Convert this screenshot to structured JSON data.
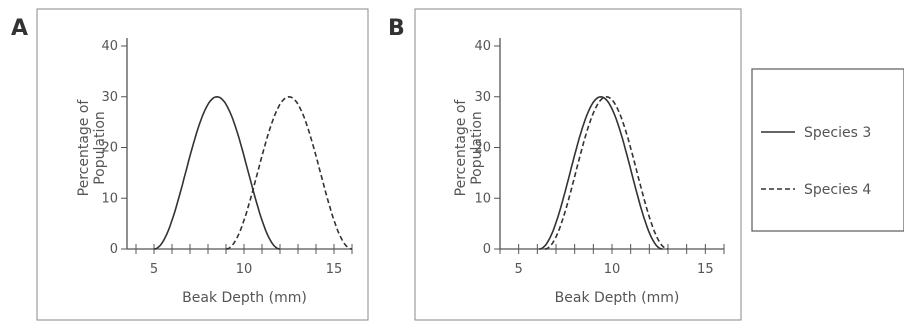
{
  "chart_data": [
    {
      "panel": "A",
      "type": "line",
      "xlabel": "Beak Depth (mm)",
      "ylabel": [
        "Percentage of",
        "Population"
      ],
      "xlim": [
        3.5,
        16
      ],
      "ylim": [
        0,
        40
      ],
      "xticks": [
        5,
        10,
        15
      ],
      "yticks": [
        0,
        10,
        20,
        30,
        40
      ],
      "series": [
        {
          "name": "Species 3",
          "style": "solid",
          "peak_x": 8.5,
          "peak_y": 30,
          "half_width": 3.5,
          "x": [
            5,
            6,
            7,
            8,
            8.5,
            9,
            10,
            11,
            12
          ],
          "y": [
            0,
            4.5,
            17,
            28,
            30,
            28,
            17,
            4.5,
            0
          ]
        },
        {
          "name": "Species 4",
          "style": "dashed",
          "peak_x": 12.5,
          "peak_y": 30,
          "half_width": 3.5,
          "x": [
            9,
            10,
            11,
            12,
            12.5,
            13,
            14,
            15,
            16
          ],
          "y": [
            0,
            4.5,
            17,
            28,
            30,
            28,
            17,
            4.5,
            0
          ]
        }
      ]
    },
    {
      "panel": "B",
      "type": "line",
      "xlabel": "Beak Depth (mm)",
      "ylabel": [
        "Percentage of",
        "Population"
      ],
      "xlim": [
        4,
        16
      ],
      "ylim": [
        0,
        40
      ],
      "xticks": [
        5,
        10,
        15
      ],
      "yticks": [
        0,
        10,
        20,
        30,
        40
      ],
      "series": [
        {
          "name": "Species 3",
          "style": "solid",
          "peak_x": 9.4,
          "peak_y": 30,
          "half_width": 3.3,
          "x": [
            6.1,
            7,
            8,
            9,
            9.4,
            10,
            11,
            12,
            12.7
          ],
          "y": [
            0,
            6,
            19,
            29,
            30,
            28,
            17,
            4,
            0
          ]
        },
        {
          "name": "Species 4",
          "style": "dashed",
          "peak_x": 9.7,
          "peak_y": 30,
          "half_width": 3.3,
          "x": [
            6.4,
            7,
            8,
            9,
            9.7,
            10,
            11,
            12,
            13
          ],
          "y": [
            0,
            4,
            16,
            27,
            30,
            29.5,
            20,
            7,
            0
          ]
        }
      ]
    }
  ],
  "panels": {
    "A": {
      "letter": "A"
    },
    "B": {
      "letter": "B"
    }
  },
  "legend": {
    "items": [
      {
        "label": "Species 3",
        "style": "solid"
      },
      {
        "label": "Species 4",
        "style": "dashed"
      }
    ]
  },
  "colors": {
    "curve": "#333333",
    "axis": "#555555",
    "frame": "#888888"
  }
}
